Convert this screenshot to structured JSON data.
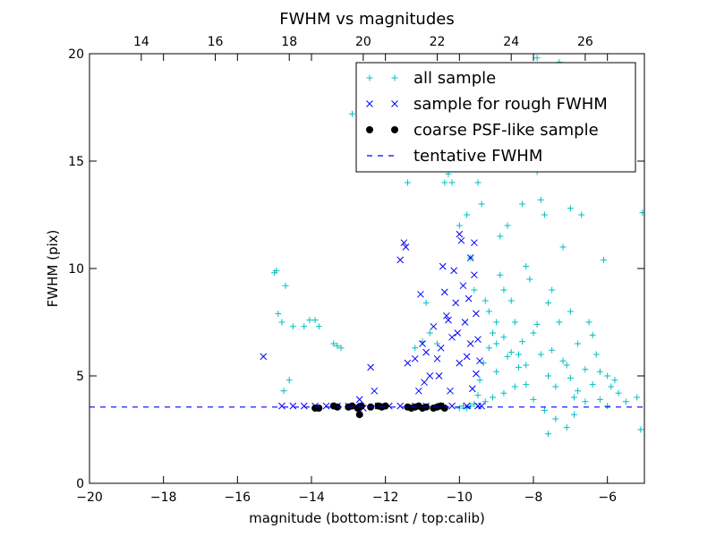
{
  "chart_data": {
    "type": "scatter",
    "title": "FWHM vs magnitudes",
    "xlabel": "magnitude (bottom:isnt / top:calib)",
    "ylabel": "FWHM (pix)",
    "xlim": [
      -20,
      -5
    ],
    "ylim": [
      0,
      20
    ],
    "x_ticks": [
      -20,
      -18,
      -16,
      -14,
      -12,
      -10,
      -8,
      -6
    ],
    "x_tick_labels": [
      "−20",
      "−18",
      "−16",
      "−14",
      "−12",
      "−10",
      "−8",
      "−6"
    ],
    "y_ticks": [
      0,
      5,
      10,
      15,
      20
    ],
    "y_tick_labels": [
      "0",
      "5",
      "10",
      "15",
      "20"
    ],
    "top_axis": {
      "offset": 32.6,
      "ticks": [
        14,
        16,
        18,
        20,
        22,
        24,
        26
      ],
      "tick_labels": [
        "14",
        "16",
        "18",
        "20",
        "22",
        "24",
        "26"
      ]
    },
    "grid": false,
    "legend_position": "top-right",
    "series": [
      {
        "name": "all sample",
        "marker": "plus",
        "color": "#00bfbf",
        "points": [
          [
            -15.0,
            9.8
          ],
          [
            -14.95,
            9.9
          ],
          [
            -14.9,
            7.9
          ],
          [
            -14.8,
            7.5
          ],
          [
            -14.7,
            9.2
          ],
          [
            -14.75,
            4.3
          ],
          [
            -14.6,
            4.8
          ],
          [
            -14.5,
            7.3
          ],
          [
            -14.2,
            7.3
          ],
          [
            -14.05,
            7.6
          ],
          [
            -13.9,
            7.6
          ],
          [
            -13.8,
            7.3
          ],
          [
            -13.4,
            6.5
          ],
          [
            -13.3,
            6.4
          ],
          [
            -13.2,
            6.3
          ],
          [
            -12.9,
            17.2
          ],
          [
            -11.4,
            14.0
          ],
          [
            -11.2,
            6.3
          ],
          [
            -11.0,
            6.6
          ],
          [
            -10.9,
            8.4
          ],
          [
            -10.8,
            7.0
          ],
          [
            -10.6,
            6.5
          ],
          [
            -10.4,
            14.0
          ],
          [
            -10.3,
            14.4
          ],
          [
            -10.2,
            14.0
          ],
          [
            -10.0,
            12.0
          ],
          [
            -9.95,
            15.0
          ],
          [
            -9.8,
            12.5
          ],
          [
            -9.7,
            10.5
          ],
          [
            -9.6,
            9.0
          ],
          [
            -9.5,
            14.0
          ],
          [
            -9.4,
            13.0
          ],
          [
            -9.3,
            8.5
          ],
          [
            -9.2,
            8.0
          ],
          [
            -9.1,
            7.0
          ],
          [
            -9.0,
            6.5
          ],
          [
            -8.9,
            11.5
          ],
          [
            -8.8,
            9.0
          ],
          [
            -8.7,
            12.0
          ],
          [
            -8.6,
            8.5
          ],
          [
            -8.5,
            7.5
          ],
          [
            -8.4,
            6.0
          ],
          [
            -8.3,
            13.0
          ],
          [
            -8.2,
            5.5
          ],
          [
            -8.1,
            9.5
          ],
          [
            -8.0,
            7.0
          ],
          [
            -7.9,
            14.5
          ],
          [
            -7.8,
            6.0
          ],
          [
            -7.7,
            12.5
          ],
          [
            -7.6,
            5.0
          ],
          [
            -7.5,
            9.0
          ],
          [
            -7.4,
            4.5
          ],
          [
            -7.3,
            7.5
          ],
          [
            -7.2,
            11.0
          ],
          [
            -7.1,
            5.5
          ],
          [
            -7.0,
            12.8
          ],
          [
            -6.9,
            4.0
          ],
          [
            -6.8,
            6.5
          ],
          [
            -6.7,
            12.5
          ],
          [
            -6.6,
            3.8
          ],
          [
            -6.5,
            7.5
          ],
          [
            -6.3,
            6.0
          ],
          [
            -6.1,
            10.4
          ],
          [
            -6.0,
            5.0
          ],
          [
            -5.9,
            4.5
          ],
          [
            -5.7,
            4.2
          ],
          [
            -5.5,
            3.8
          ],
          [
            -5.2,
            4.0
          ],
          [
            -5.05,
            12.6
          ],
          [
            -5.1,
            2.5
          ],
          [
            -7.3,
            19.6
          ],
          [
            -7.9,
            19.8
          ],
          [
            -8.6,
            17.0
          ],
          [
            -8.4,
            15.0
          ],
          [
            -7.8,
            13.2
          ],
          [
            -8.9,
            9.7
          ],
          [
            -8.2,
            10.1
          ],
          [
            -7.6,
            8.4
          ],
          [
            -7.0,
            8.0
          ],
          [
            -6.4,
            6.9
          ],
          [
            -6.2,
            5.2
          ],
          [
            -5.8,
            4.8
          ],
          [
            -8.5,
            4.5
          ],
          [
            -8.8,
            4.2
          ],
          [
            -9.1,
            4.0
          ],
          [
            -9.3,
            3.8
          ],
          [
            -9.0,
            5.2
          ],
          [
            -8.7,
            5.9
          ],
          [
            -8.3,
            6.6
          ],
          [
            -7.9,
            7.4
          ],
          [
            -7.5,
            6.2
          ],
          [
            -7.2,
            5.7
          ],
          [
            -7.0,
            4.9
          ],
          [
            -6.8,
            4.3
          ],
          [
            -6.6,
            5.3
          ],
          [
            -6.4,
            4.6
          ],
          [
            -6.2,
            3.9
          ],
          [
            -6.0,
            3.6
          ],
          [
            -7.7,
            3.4
          ],
          [
            -7.4,
            3.0
          ],
          [
            -7.1,
            2.6
          ],
          [
            -6.9,
            3.2
          ],
          [
            -7.6,
            2.3
          ],
          [
            -8.0,
            3.9
          ],
          [
            -8.2,
            4.6
          ],
          [
            -8.4,
            5.4
          ],
          [
            -8.6,
            6.1
          ],
          [
            -8.8,
            6.8
          ],
          [
            -9.0,
            7.5
          ],
          [
            -9.2,
            6.3
          ],
          [
            -9.35,
            5.6
          ],
          [
            -9.45,
            4.8
          ],
          [
            -9.5,
            4.1
          ],
          [
            -9.6,
            3.7
          ],
          [
            -9.7,
            3.6
          ],
          [
            -9.8,
            3.5
          ],
          [
            -9.9,
            3.6
          ],
          [
            -10.0,
            3.5
          ]
        ]
      },
      {
        "name": "sample for rough FWHM",
        "marker": "x",
        "color": "#0000ff",
        "points": [
          [
            -15.3,
            5.9
          ],
          [
            -14.8,
            3.6
          ],
          [
            -14.5,
            3.6
          ],
          [
            -14.2,
            3.6
          ],
          [
            -13.9,
            3.6
          ],
          [
            -13.6,
            3.6
          ],
          [
            -13.3,
            3.6
          ],
          [
            -13.0,
            3.6
          ],
          [
            -12.8,
            3.6
          ],
          [
            -12.6,
            3.5
          ],
          [
            -12.7,
            3.9
          ],
          [
            -12.4,
            5.4
          ],
          [
            -12.3,
            4.3
          ],
          [
            -12.2,
            3.6
          ],
          [
            -11.9,
            3.6
          ],
          [
            -11.6,
            3.6
          ],
          [
            -11.5,
            11.2
          ],
          [
            -11.45,
            11.0
          ],
          [
            -11.6,
            10.4
          ],
          [
            -11.4,
            5.6
          ],
          [
            -11.2,
            5.8
          ],
          [
            -11.2,
            3.6
          ],
          [
            -11.05,
            8.8
          ],
          [
            -11.0,
            6.5
          ],
          [
            -10.9,
            6.1
          ],
          [
            -10.9,
            3.6
          ],
          [
            -10.8,
            5.0
          ],
          [
            -10.7,
            7.3
          ],
          [
            -10.6,
            5.8
          ],
          [
            -10.55,
            5.0
          ],
          [
            -10.5,
            6.3
          ],
          [
            -10.5,
            3.6
          ],
          [
            -10.45,
            10.1
          ],
          [
            -10.4,
            8.9
          ],
          [
            -10.35,
            7.8
          ],
          [
            -10.3,
            7.6
          ],
          [
            -10.25,
            4.3
          ],
          [
            -10.2,
            6.8
          ],
          [
            -10.2,
            3.6
          ],
          [
            -10.15,
            9.9
          ],
          [
            -10.1,
            8.4
          ],
          [
            -10.05,
            7.0
          ],
          [
            -10.0,
            11.6
          ],
          [
            -10.0,
            5.6
          ],
          [
            -9.95,
            11.3
          ],
          [
            -9.9,
            9.2
          ],
          [
            -9.85,
            7.5
          ],
          [
            -9.8,
            5.9
          ],
          [
            -9.8,
            3.6
          ],
          [
            -9.75,
            8.6
          ],
          [
            -9.7,
            6.5
          ],
          [
            -9.7,
            10.5
          ],
          [
            -9.65,
            4.4
          ],
          [
            -9.6,
            11.2
          ],
          [
            -9.6,
            9.7
          ],
          [
            -9.55,
            7.9
          ],
          [
            -9.55,
            5.1
          ],
          [
            -9.5,
            6.7
          ],
          [
            -9.5,
            3.6
          ],
          [
            -9.45,
            5.7
          ],
          [
            -9.4,
            3.6
          ],
          [
            -11.1,
            4.3
          ],
          [
            -10.95,
            4.7
          ]
        ]
      },
      {
        "name": "coarse PSF-like sample",
        "marker": "circle",
        "color": "#000000",
        "points": [
          [
            -13.9,
            3.5
          ],
          [
            -13.8,
            3.5
          ],
          [
            -13.4,
            3.6
          ],
          [
            -13.3,
            3.55
          ],
          [
            -13.0,
            3.55
          ],
          [
            -12.9,
            3.6
          ],
          [
            -12.75,
            3.5
          ],
          [
            -12.7,
            3.2
          ],
          [
            -12.65,
            3.6
          ],
          [
            -12.4,
            3.55
          ],
          [
            -12.2,
            3.6
          ],
          [
            -12.1,
            3.55
          ],
          [
            -12.0,
            3.6
          ],
          [
            -11.4,
            3.55
          ],
          [
            -11.3,
            3.5
          ],
          [
            -11.2,
            3.55
          ],
          [
            -11.1,
            3.6
          ],
          [
            -11.0,
            3.5
          ],
          [
            -10.9,
            3.55
          ],
          [
            -10.7,
            3.5
          ],
          [
            -10.6,
            3.55
          ],
          [
            -10.5,
            3.6
          ],
          [
            -10.4,
            3.5
          ]
        ]
      },
      {
        "name": "tentative FWHM",
        "marker": "dashed-line",
        "color": "#0000ff",
        "points": [
          [
            -20,
            3.55
          ],
          [
            -5,
            3.55
          ]
        ]
      }
    ]
  }
}
